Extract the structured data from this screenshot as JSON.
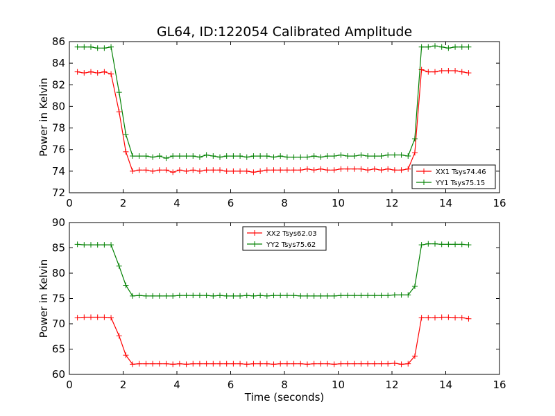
{
  "figure": {
    "title": "GL64, ID:122054 Calibrated Amplitude",
    "xlabel": "Time (seconds)"
  },
  "chart_data": [
    {
      "type": "line",
      "title": "GL64, ID:122054 Calibrated Amplitude",
      "xlabel": "",
      "ylabel": "Power in Kelvin",
      "xlim": [
        0,
        16
      ],
      "ylim": [
        72,
        86
      ],
      "xticks": [
        0,
        2,
        4,
        6,
        8,
        10,
        12,
        14,
        16
      ],
      "yticks": [
        72,
        74,
        76,
        78,
        80,
        82,
        84,
        86
      ],
      "grid": false,
      "legend_position": "lower-right",
      "x": [
        0.3,
        0.55,
        0.8,
        1.05,
        1.3,
        1.55,
        1.85,
        2.1,
        2.35,
        2.6,
        2.85,
        3.1,
        3.35,
        3.6,
        3.85,
        4.1,
        4.35,
        4.6,
        4.85,
        5.1,
        5.35,
        5.6,
        5.85,
        6.1,
        6.35,
        6.6,
        6.85,
        7.1,
        7.35,
        7.6,
        7.85,
        8.1,
        8.35,
        8.6,
        8.85,
        9.1,
        9.35,
        9.6,
        9.85,
        10.1,
        10.35,
        10.6,
        10.85,
        11.1,
        11.35,
        11.6,
        11.85,
        12.1,
        12.35,
        12.6,
        12.85,
        13.1,
        13.35,
        13.6,
        13.85,
        14.1,
        14.35,
        14.6,
        14.85
      ],
      "series": [
        {
          "name": "XX1 Tsys74.46",
          "color": "#ff0000",
          "values": [
            83.2,
            83.1,
            83.2,
            83.1,
            83.2,
            83.0,
            79.5,
            75.8,
            74.0,
            74.1,
            74.1,
            74.0,
            74.1,
            74.1,
            73.9,
            74.1,
            74.0,
            74.1,
            74.0,
            74.1,
            74.1,
            74.1,
            74.0,
            74.0,
            74.0,
            74.0,
            73.9,
            74.0,
            74.1,
            74.1,
            74.1,
            74.1,
            74.1,
            74.1,
            74.2,
            74.1,
            74.2,
            74.1,
            74.1,
            74.2,
            74.2,
            74.2,
            74.2,
            74.1,
            74.2,
            74.1,
            74.2,
            74.1,
            74.1,
            74.2,
            75.7,
            83.4,
            83.2,
            83.2,
            83.3,
            83.3,
            83.3,
            83.2,
            83.1
          ]
        },
        {
          "name": "YY1 Tsys75.15",
          "color": "#008000",
          "values": [
            85.5,
            85.5,
            85.5,
            85.4,
            85.4,
            85.5,
            81.3,
            77.4,
            75.4,
            75.4,
            75.4,
            75.3,
            75.4,
            75.2,
            75.4,
            75.4,
            75.4,
            75.4,
            75.3,
            75.5,
            75.4,
            75.3,
            75.4,
            75.4,
            75.4,
            75.3,
            75.4,
            75.4,
            75.4,
            75.3,
            75.4,
            75.3,
            75.3,
            75.3,
            75.3,
            75.4,
            75.3,
            75.4,
            75.4,
            75.5,
            75.4,
            75.4,
            75.5,
            75.4,
            75.4,
            75.4,
            75.5,
            75.5,
            75.5,
            75.4,
            77.0,
            85.5,
            85.5,
            85.6,
            85.5,
            85.4,
            85.5,
            85.5,
            85.5
          ]
        }
      ]
    },
    {
      "type": "line",
      "title": "",
      "xlabel": "Time (seconds)",
      "ylabel": "Power in Kelvin",
      "xlim": [
        0,
        16
      ],
      "ylim": [
        60,
        90
      ],
      "xticks": [
        0,
        2,
        4,
        6,
        8,
        10,
        12,
        14,
        16
      ],
      "yticks": [
        60,
        65,
        70,
        75,
        80,
        85,
        90
      ],
      "grid": false,
      "legend_position": "upper-center",
      "x": [
        0.3,
        0.55,
        0.8,
        1.05,
        1.3,
        1.55,
        1.85,
        2.1,
        2.35,
        2.6,
        2.85,
        3.1,
        3.35,
        3.6,
        3.85,
        4.1,
        4.35,
        4.6,
        4.85,
        5.1,
        5.35,
        5.6,
        5.85,
        6.1,
        6.35,
        6.6,
        6.85,
        7.1,
        7.35,
        7.6,
        7.85,
        8.1,
        8.35,
        8.6,
        8.85,
        9.1,
        9.35,
        9.6,
        9.85,
        10.1,
        10.35,
        10.6,
        10.85,
        11.1,
        11.35,
        11.6,
        11.85,
        12.1,
        12.35,
        12.6,
        12.85,
        13.1,
        13.35,
        13.6,
        13.85,
        14.1,
        14.35,
        14.6,
        14.85
      ],
      "series": [
        {
          "name": "XX2 Tsys62.03",
          "color": "#ff0000",
          "values": [
            71.2,
            71.3,
            71.3,
            71.3,
            71.3,
            71.2,
            67.6,
            63.8,
            62.0,
            62.1,
            62.1,
            62.1,
            62.1,
            62.1,
            62.0,
            62.1,
            62.0,
            62.1,
            62.1,
            62.1,
            62.1,
            62.1,
            62.1,
            62.1,
            62.1,
            62.0,
            62.1,
            62.1,
            62.1,
            62.0,
            62.1,
            62.1,
            62.1,
            62.1,
            62.0,
            62.1,
            62.1,
            62.1,
            62.0,
            62.1,
            62.1,
            62.1,
            62.1,
            62.1,
            62.1,
            62.1,
            62.1,
            62.2,
            62.0,
            62.1,
            63.6,
            71.2,
            71.2,
            71.2,
            71.3,
            71.3,
            71.2,
            71.2,
            71.0
          ]
        },
        {
          "name": "YY2 Tsys75.62",
          "color": "#008000",
          "values": [
            85.7,
            85.6,
            85.6,
            85.6,
            85.6,
            85.6,
            81.4,
            77.6,
            75.5,
            75.6,
            75.5,
            75.5,
            75.5,
            75.5,
            75.5,
            75.6,
            75.6,
            75.6,
            75.6,
            75.6,
            75.5,
            75.6,
            75.5,
            75.5,
            75.5,
            75.6,
            75.5,
            75.6,
            75.5,
            75.6,
            75.6,
            75.6,
            75.6,
            75.5,
            75.5,
            75.5,
            75.5,
            75.5,
            75.5,
            75.6,
            75.6,
            75.6,
            75.6,
            75.6,
            75.6,
            75.6,
            75.6,
            75.7,
            75.7,
            75.7,
            77.4,
            85.6,
            85.8,
            85.8,
            85.7,
            85.7,
            85.7,
            85.7,
            85.6
          ]
        }
      ]
    }
  ]
}
